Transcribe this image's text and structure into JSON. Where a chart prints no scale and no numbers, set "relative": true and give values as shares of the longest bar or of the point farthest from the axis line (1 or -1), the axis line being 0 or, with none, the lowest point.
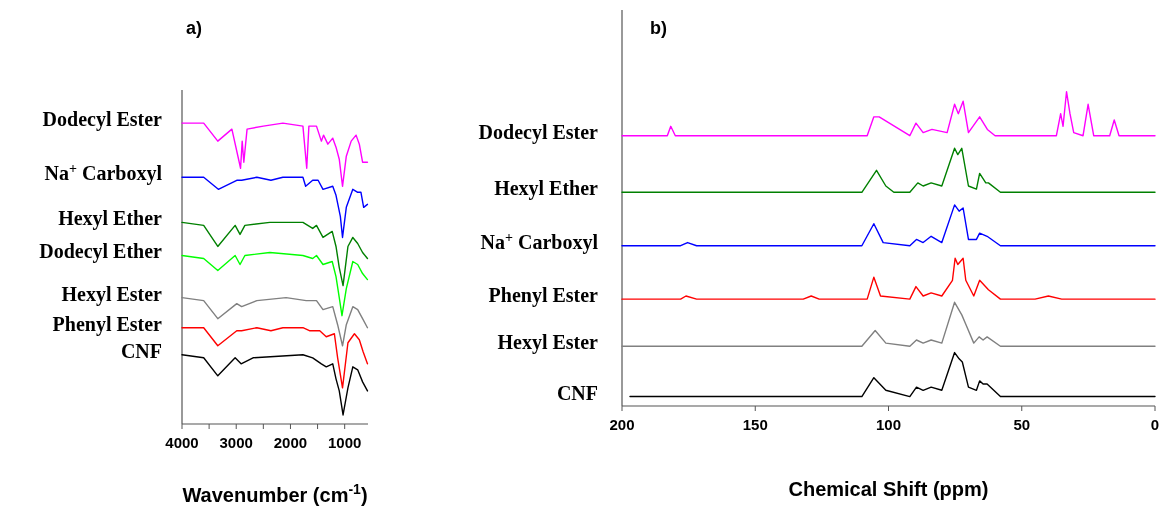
{
  "chart_data": [
    {
      "type": "line",
      "title": "a)",
      "xlabel": "Wavenumber (cm$^{-1}$)",
      "relative": true,
      "xlim": [
        4000,
        570
      ],
      "xticks": [
        4000,
        {
          "value": 3500,
          "label": null
        },
        3000,
        {
          "value": 2500,
          "label": null
        },
        2000,
        {
          "value": 1500,
          "label": null
        },
        1000
      ],
      "tick_labels": "x",
      "series": [
        {
          "name": "Dodecyl Ester",
          "color": "#ff00ff",
          "x": [
            4000,
            3600,
            3340,
            3080,
            2920,
            2890,
            2860,
            2800,
            2500,
            2140,
            1770,
            1700,
            1660,
            1520,
            1430,
            1390,
            1310,
            1220,
            1160,
            1100,
            1040,
            970,
            880,
            790,
            730,
            670,
            580
          ],
          "values": [
            1.0,
            1.0,
            0.94,
            0.98,
            0.85,
            0.94,
            0.87,
            0.98,
            0.99,
            1.0,
            0.99,
            0.85,
            0.99,
            0.99,
            0.94,
            0.96,
            0.93,
            0.95,
            0.92,
            0.88,
            0.79,
            0.89,
            0.94,
            0.96,
            0.93,
            0.87,
            0.87
          ]
        },
        {
          "name": "Na$^{+}$ Carboxyl",
          "color": "#0000ff",
          "x": [
            4000,
            3600,
            3330,
            2990,
            2900,
            2620,
            2360,
            2140,
            1770,
            1720,
            1590,
            1490,
            1400,
            1220,
            1160,
            1080,
            1040,
            970,
            850,
            760,
            700,
            650,
            580
          ],
          "values": [
            0.82,
            0.82,
            0.78,
            0.81,
            0.81,
            0.82,
            0.81,
            0.82,
            0.82,
            0.79,
            0.81,
            0.81,
            0.78,
            0.79,
            0.76,
            0.69,
            0.62,
            0.72,
            0.78,
            0.77,
            0.77,
            0.72,
            0.73
          ]
        },
        {
          "name": "Hexyl Ether",
          "color": "#008000",
          "x": [
            4000,
            3600,
            3340,
            3020,
            2930,
            2840,
            2380,
            1770,
            1590,
            1520,
            1400,
            1230,
            1160,
            1100,
            1030,
            940,
            850,
            760,
            670,
            580
          ],
          "values": [
            0.67,
            0.66,
            0.59,
            0.66,
            0.63,
            0.66,
            0.67,
            0.67,
            0.65,
            0.66,
            0.62,
            0.64,
            0.59,
            0.52,
            0.46,
            0.59,
            0.62,
            0.6,
            0.57,
            0.55
          ]
        },
        {
          "name": "Dodecyl Ether",
          "color": "#00ff00",
          "x": [
            4000,
            3600,
            3340,
            3020,
            2930,
            2840,
            2380,
            1770,
            1590,
            1520,
            1400,
            1230,
            1160,
            1100,
            1050,
            970,
            850,
            760,
            670,
            580
          ],
          "values": [
            0.56,
            0.55,
            0.51,
            0.56,
            0.53,
            0.56,
            0.57,
            0.56,
            0.55,
            0.56,
            0.53,
            0.54,
            0.49,
            0.42,
            0.36,
            0.45,
            0.54,
            0.53,
            0.5,
            0.48
          ]
        },
        {
          "name": "Hexyl Ester",
          "color": "#808080",
          "x": [
            4000,
            3600,
            3340,
            2990,
            2900,
            2620,
            2080,
            1710,
            1520,
            1400,
            1220,
            1130,
            1040,
            970,
            850,
            760,
            670,
            580
          ],
          "values": [
            0.42,
            0.41,
            0.35,
            0.4,
            0.39,
            0.41,
            0.42,
            0.41,
            0.41,
            0.38,
            0.39,
            0.33,
            0.26,
            0.33,
            0.39,
            0.38,
            0.35,
            0.32
          ]
        },
        {
          "name": "Phenyl Ester",
          "color": "#ff0000",
          "x": [
            4000,
            3600,
            3340,
            2990,
            2900,
            2620,
            2360,
            2140,
            1770,
            1650,
            1460,
            1340,
            1190,
            1130,
            1040,
            940,
            820,
            730,
            660,
            580
          ],
          "values": [
            0.32,
            0.32,
            0.26,
            0.31,
            0.31,
            0.32,
            0.31,
            0.32,
            0.32,
            0.31,
            0.31,
            0.29,
            0.3,
            0.22,
            0.12,
            0.27,
            0.3,
            0.28,
            0.24,
            0.2
          ]
        },
        {
          "name": "CNF",
          "color": "#000000",
          "x": [
            4000,
            3600,
            3340,
            3020,
            2910,
            2690,
            1770,
            1590,
            1430,
            1340,
            1220,
            1160,
            1100,
            1030,
            940,
            850,
            760,
            670,
            580
          ],
          "values": [
            0.23,
            0.22,
            0.16,
            0.22,
            0.2,
            0.22,
            0.23,
            0.22,
            0.2,
            0.19,
            0.2,
            0.15,
            0.11,
            0.03,
            0.12,
            0.19,
            0.18,
            0.14,
            0.11
          ]
        }
      ]
    },
    {
      "type": "line",
      "title": "b)",
      "xlabel": "Chemical Shift (ppm)",
      "relative": true,
      "xlim": [
        200,
        0
      ],
      "xticks": [
        200,
        150,
        100,
        50,
        0
      ],
      "tick_labels": "x",
      "series": [
        {
          "name": "Dodecyl Ester",
          "color": "#ff00ff",
          "x": [
            200,
            183,
            181.7,
            180,
            108,
            105.5,
            103.5,
            92,
            89.7,
            87,
            83.7,
            78,
            75.2,
            73.8,
            72,
            70,
            65.8,
            62.9,
            60,
            37,
            35.4,
            34.5,
            33.2,
            31.9,
            30.5,
            27,
            25.1,
            23,
            17,
            15.3,
            13.5,
            0
          ],
          "values": [
            0.86,
            0.86,
            0.89,
            0.86,
            0.86,
            0.92,
            0.92,
            0.86,
            0.9,
            0.87,
            0.88,
            0.87,
            0.96,
            0.93,
            0.97,
            0.87,
            0.92,
            0.88,
            0.86,
            0.86,
            0.93,
            0.89,
            1.0,
            0.93,
            0.87,
            0.86,
            0.96,
            0.86,
            0.86,
            0.91,
            0.86,
            0.86
          ]
        },
        {
          "name": "Hexyl Ether",
          "color": "#008000",
          "x": [
            200,
            110,
            104.5,
            101,
            98,
            92,
            89,
            87,
            84,
            80,
            75.2,
            74,
            72.5,
            70,
            67,
            65.8,
            63.5,
            62.5,
            58,
            0
          ],
          "values": [
            0.68,
            0.68,
            0.75,
            0.7,
            0.68,
            0.68,
            0.71,
            0.7,
            0.71,
            0.7,
            0.82,
            0.8,
            0.82,
            0.7,
            0.69,
            0.74,
            0.71,
            0.71,
            0.68,
            0.68
          ]
        },
        {
          "name": "Na$^{+}$ Carboxyl",
          "color": "#0000ff",
          "x": [
            200,
            178,
            175.4,
            172,
            110,
            105.5,
            102,
            92,
            89.5,
            87,
            84,
            80,
            75.2,
            73.5,
            72,
            70,
            67,
            65.8,
            63,
            58,
            0
          ],
          "values": [
            0.51,
            0.51,
            0.52,
            0.51,
            0.51,
            0.58,
            0.52,
            0.51,
            0.53,
            0.52,
            0.54,
            0.52,
            0.64,
            0.62,
            0.63,
            0.53,
            0.53,
            0.55,
            0.54,
            0.51,
            0.51
          ]
        },
        {
          "name": "Phenyl Ester",
          "color": "#ff0000",
          "x": [
            200,
            178,
            176,
            172,
            132,
            129,
            126,
            108,
            105.5,
            103,
            92,
            89.7,
            87,
            84,
            80,
            76,
            75,
            74,
            72,
            71,
            68,
            65.8,
            62.5,
            58,
            45,
            40,
            35,
            0
          ],
          "values": [
            0.34,
            0.34,
            0.35,
            0.34,
            0.34,
            0.35,
            0.34,
            0.34,
            0.41,
            0.35,
            0.34,
            0.38,
            0.35,
            0.36,
            0.35,
            0.4,
            0.47,
            0.45,
            0.47,
            0.4,
            0.35,
            0.4,
            0.37,
            0.34,
            0.34,
            0.35,
            0.34,
            0.34
          ]
        },
        {
          "name": "Hexyl Ester",
          "color": "#808080",
          "x": [
            200,
            110,
            105,
            101,
            92,
            89.5,
            87,
            84,
            80,
            75.2,
            72.5,
            71,
            68,
            66,
            64.5,
            63,
            58,
            0
          ],
          "values": [
            0.19,
            0.19,
            0.24,
            0.2,
            0.19,
            0.21,
            0.2,
            0.21,
            0.2,
            0.33,
            0.29,
            0.26,
            0.2,
            0.22,
            0.21,
            0.22,
            0.19,
            0.19
          ]
        },
        {
          "name": "CNF",
          "color": "#000000",
          "x": [
            197,
            110,
            105.5,
            101,
            92,
            89.5,
            87,
            84,
            80,
            75.2,
            73.5,
            72.3,
            70,
            67,
            65.8,
            64.5,
            63,
            58,
            0
          ],
          "values": [
            0.03,
            0.03,
            0.09,
            0.05,
            0.03,
            0.06,
            0.05,
            0.06,
            0.05,
            0.17,
            0.15,
            0.14,
            0.06,
            0.05,
            0.08,
            0.07,
            0.07,
            0.03,
            0.03
          ]
        }
      ]
    }
  ]
}
